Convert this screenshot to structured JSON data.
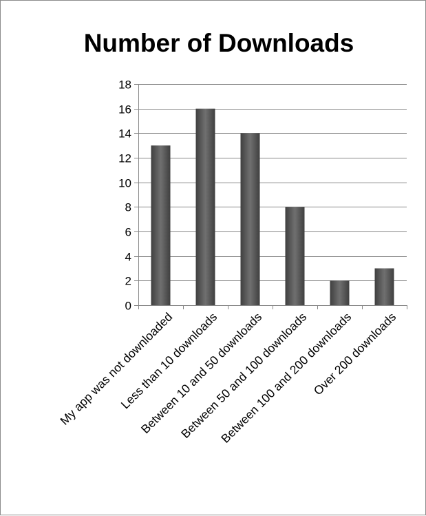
{
  "chart_data": {
    "type": "bar",
    "title": "Number of Downloads",
    "xlabel": "",
    "ylabel": "",
    "ylim": [
      0,
      18
    ],
    "yticks": [
      0,
      2,
      4,
      6,
      8,
      10,
      12,
      14,
      16,
      18
    ],
    "grid": true,
    "legend": "none",
    "categories": [
      "My app was not downloaded",
      "Less than 10 downloads",
      "Between 10 and 50 downloads",
      "Between 50 and 100 downloads",
      "Between 100 and 200 downloads",
      "Over 200 downloads"
    ],
    "values": [
      13,
      16,
      14,
      8,
      2,
      3
    ],
    "colors": {
      "bar_dark": "#3f3f3f",
      "bar_light": "#707070",
      "grid": "#868686"
    }
  }
}
